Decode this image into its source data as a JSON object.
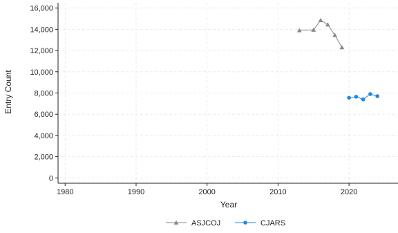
{
  "chart_data": {
    "type": "line",
    "xlabel": "Year",
    "ylabel": "Entry Count",
    "xlim": [
      1979,
      2027
    ],
    "ylim": [
      -500,
      16500
    ],
    "xticks": [
      1980,
      1990,
      2000,
      2010,
      2020
    ],
    "yticks": [
      0,
      2000,
      4000,
      6000,
      8000,
      10000,
      12000,
      14000,
      16000
    ],
    "ytick_labels": [
      "0",
      "2,000",
      "4,000",
      "6,000",
      "8,000",
      "10,000",
      "12,000",
      "14,000",
      "16,000"
    ],
    "grid": true,
    "legend_position": "bottom",
    "series": [
      {
        "name": "ASJCOJ",
        "color": "#888888",
        "marker": "triangle",
        "x": [
          2013,
          2015,
          2016,
          2017,
          2018,
          2019
        ],
        "y": [
          13900,
          13950,
          14850,
          14450,
          13450,
          12300
        ]
      },
      {
        "name": "CJARS",
        "color": "#1e88e5",
        "marker": "circle",
        "x": [
          2020,
          2021,
          2022,
          2023,
          2024
        ],
        "y": [
          7550,
          7650,
          7400,
          7900,
          7700
        ]
      }
    ]
  }
}
